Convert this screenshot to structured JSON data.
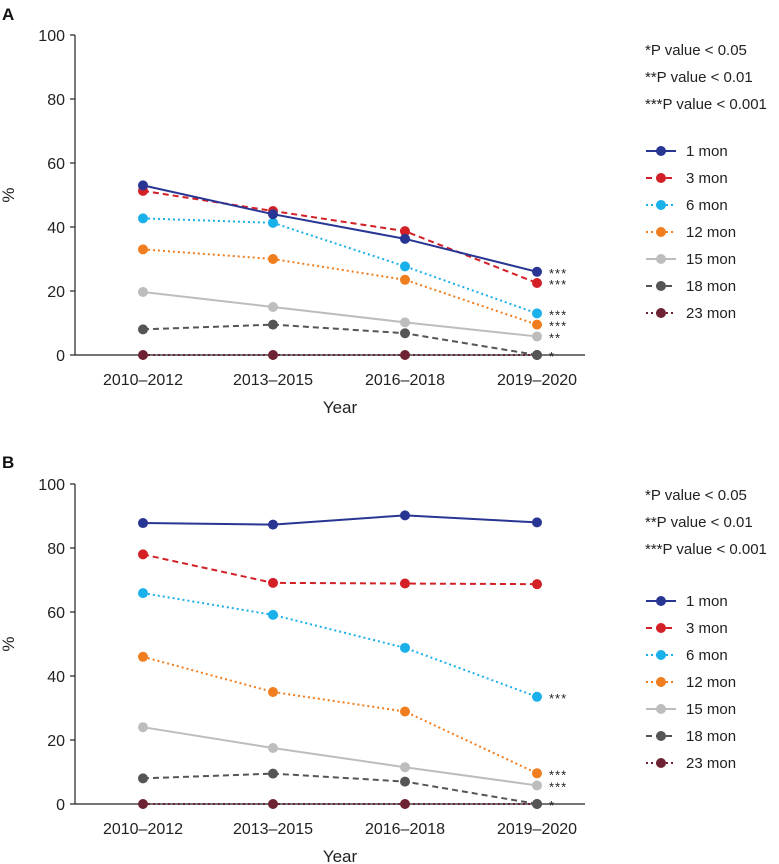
{
  "chart_data": [
    {
      "panel": "A",
      "type": "line",
      "title": "",
      "xlabel": "Year",
      "ylabel": "%",
      "ylim": [
        0,
        100
      ],
      "yticks": [
        "0",
        "20",
        "40",
        "60",
        "80",
        "100"
      ],
      "categories": [
        "2010–2012",
        "2013–2015",
        "2016–2018",
        "2019–2020"
      ],
      "notes": [
        "*P value < 0.05",
        "**P value < 0.01",
        "***P value < 0.001"
      ],
      "series": [
        {
          "name": "1 mon",
          "color": "#283593",
          "dash": "solid",
          "values": [
            53,
            44,
            36.3,
            26
          ],
          "sig": "***"
        },
        {
          "name": "3 mon",
          "color": "#d32027",
          "dash": "dashed",
          "values": [
            51.3,
            45,
            38.7,
            22.5
          ],
          "sig": "***"
        },
        {
          "name": "6 mon",
          "color": "#1ab0ea",
          "dash": "dotted",
          "values": [
            42.7,
            41.3,
            27.7,
            13
          ],
          "sig": "***"
        },
        {
          "name": "12 mon",
          "color": "#f07d1e",
          "dash": "dotted",
          "values": [
            33,
            30,
            23.5,
            9.5
          ],
          "sig": "***"
        },
        {
          "name": "15 mon",
          "color": "#bdbdbd",
          "dash": "solid",
          "values": [
            19.7,
            15,
            10.2,
            5.8
          ],
          "sig": "**"
        },
        {
          "name": "18 mon",
          "color": "#555555",
          "dash": "dashed",
          "values": [
            8,
            9.5,
            6.8,
            0
          ],
          "sig": "*"
        },
        {
          "name": "23 mon",
          "color": "#6e2333",
          "dash": "dotted",
          "values": [
            0,
            0,
            0,
            0
          ],
          "sig": ""
        }
      ]
    },
    {
      "panel": "B",
      "type": "line",
      "title": "",
      "xlabel": "Year",
      "ylabel": "%",
      "ylim": [
        0,
        100
      ],
      "yticks": [
        "0",
        "20",
        "40",
        "60",
        "80",
        "100"
      ],
      "categories": [
        "2010–2012",
        "2013–2015",
        "2016–2018",
        "2019–2020"
      ],
      "notes": [
        "*P value < 0.05",
        "**P value < 0.01",
        "***P value < 0.001"
      ],
      "series": [
        {
          "name": "1 mon",
          "color": "#283593",
          "dash": "solid",
          "values": [
            87.8,
            87.3,
            90.2,
            88
          ],
          "sig": ""
        },
        {
          "name": "3 mon",
          "color": "#d32027",
          "dash": "dashed",
          "values": [
            78,
            69.1,
            68.9,
            68.7
          ],
          "sig": ""
        },
        {
          "name": "6 mon",
          "color": "#1ab0ea",
          "dash": "dotted",
          "values": [
            65.9,
            59.1,
            48.8,
            33.5
          ],
          "sig": "***"
        },
        {
          "name": "12 mon",
          "color": "#f07d1e",
          "dash": "dotted",
          "values": [
            46,
            35,
            28.9,
            9.6
          ],
          "sig": "***"
        },
        {
          "name": "15 mon",
          "color": "#bdbdbd",
          "dash": "solid",
          "values": [
            24,
            17.5,
            11.5,
            5.8
          ],
          "sig": "***"
        },
        {
          "name": "18 mon",
          "color": "#555555",
          "dash": "dashed",
          "values": [
            8,
            9.5,
            7,
            0
          ],
          "sig": "*"
        },
        {
          "name": "23 mon",
          "color": "#6e2333",
          "dash": "dotted",
          "values": [
            0,
            0,
            0,
            0
          ],
          "sig": ""
        }
      ]
    }
  ]
}
